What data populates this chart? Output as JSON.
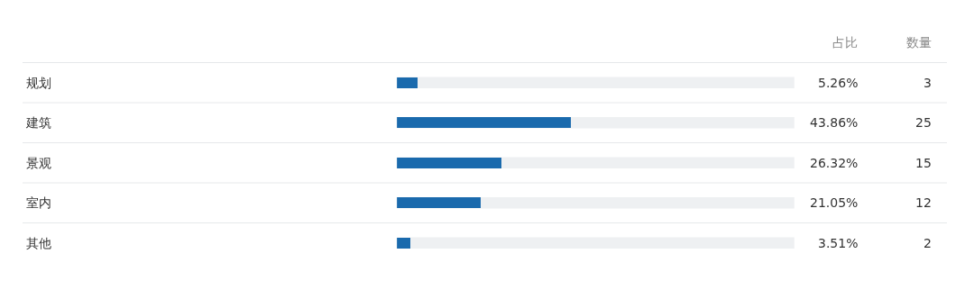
{
  "chart_data": {
    "type": "bar",
    "orientation": "horizontal",
    "categories": [
      "规划",
      "建筑",
      "景观",
      "室内",
      "其他"
    ],
    "values": [
      5.26,
      43.86,
      26.32,
      21.05,
      3.51
    ],
    "value_labels": [
      "5.26%",
      "43.86%",
      "26.32%",
      "21.05%",
      "3.51%"
    ],
    "color": "#1a6aad",
    "xlim": [
      0,
      100
    ],
    "tick_labels": "y",
    "annotations": [
      "占比",
      "数量",
      "3",
      "25",
      "15",
      "12",
      "2"
    ]
  }
}
